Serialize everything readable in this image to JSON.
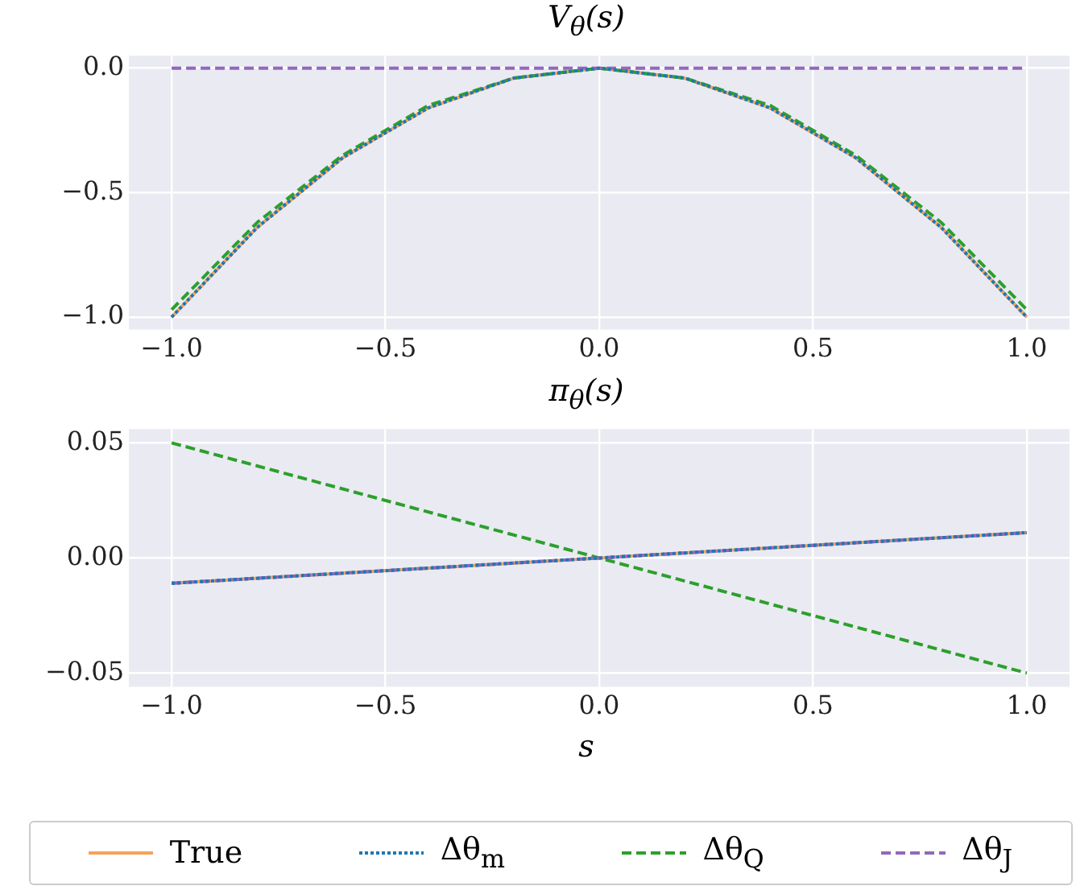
{
  "chart_data": [
    {
      "type": "line",
      "title": "V$_{θ}$(s)",
      "x": [
        -1,
        -0.8,
        -0.6,
        -0.4,
        -0.2,
        0,
        0.2,
        0.4,
        0.6,
        0.8,
        1
      ],
      "series": [
        {
          "color": "#f5a35c",
          "line_style": "solid",
          "values": [
            -1,
            -0.64,
            -0.36,
            -0.16,
            -0.04,
            0,
            -0.04,
            -0.16,
            -0.36,
            -0.64,
            -1
          ]
        },
        {
          "color": "#1f77b4",
          "line_style": "dotted",
          "values": [
            -1,
            -0.64,
            -0.36,
            -0.16,
            -0.04,
            0,
            -0.04,
            -0.16,
            -0.36,
            -0.64,
            -1
          ]
        },
        {
          "color": "#2ca02c",
          "line_style": "dashed",
          "values": [
            -0.97,
            -0.62,
            -0.35,
            -0.15,
            -0.04,
            0,
            -0.04,
            -0.15,
            -0.35,
            -0.62,
            -0.97
          ]
        },
        {
          "color": "#9467bd",
          "line_style": "dashed",
          "values": [
            0,
            0,
            0,
            0,
            0,
            0,
            0,
            0,
            0,
            0,
            0
          ]
        }
      ],
      "xlim": [
        -1.1,
        1.1
      ],
      "xticks": [
        {
          "value": -1,
          "label": "−1.0"
        },
        {
          "value": -0.5,
          "label": "−0.5"
        },
        {
          "value": 0,
          "label": "0.0"
        },
        {
          "value": 0.5,
          "label": "0.5"
        },
        {
          "value": 1,
          "label": "1.0"
        }
      ],
      "ylim": [
        -1.05,
        0.05
      ],
      "yticks": [
        {
          "value": -1,
          "label": "−1.0"
        },
        {
          "value": -0.5,
          "label": "−0.5"
        },
        {
          "value": 0,
          "label": "0.0"
        }
      ],
      "grid": true,
      "legend": false
    },
    {
      "type": "line",
      "title": "π$_{θ}$(s)",
      "xlabel": "s",
      "x": [
        -1,
        0,
        1
      ],
      "series": [
        {
          "name": "True",
          "color": "#f5a35c",
          "line_style": "solid",
          "values": [
            -0.011,
            0,
            0.011
          ]
        },
        {
          "name": "Δθ$_{m}$",
          "color": "#1f77b4",
          "line_style": "dotted",
          "values": [
            -0.011,
            0,
            0.011
          ]
        },
        {
          "name": "Δθ$_{Q}$",
          "color": "#2ca02c",
          "line_style": "dashed",
          "values": [
            0.05,
            0,
            -0.05
          ]
        },
        {
          "name": "Δθ$_{J}$",
          "color": "#9467bd",
          "line_style": "dashed",
          "values": [
            -0.011,
            0,
            0.011
          ]
        }
      ],
      "xlim": [
        -1.1,
        1.1
      ],
      "xticks": [
        {
          "value": -1,
          "label": "−1.0"
        },
        {
          "value": -0.5,
          "label": "−0.5"
        },
        {
          "value": 0,
          "label": "0.0"
        },
        {
          "value": 0.5,
          "label": "0.5"
        },
        {
          "value": 1,
          "label": "1.0"
        }
      ],
      "ylim": [
        -0.056,
        0.056
      ],
      "yticks": [
        {
          "value": -0.05,
          "label": "−0.05"
        },
        {
          "value": 0,
          "label": "0.00"
        },
        {
          "value": 0.05,
          "label": "0.05"
        }
      ],
      "grid": true,
      "legend": "bottom"
    }
  ]
}
